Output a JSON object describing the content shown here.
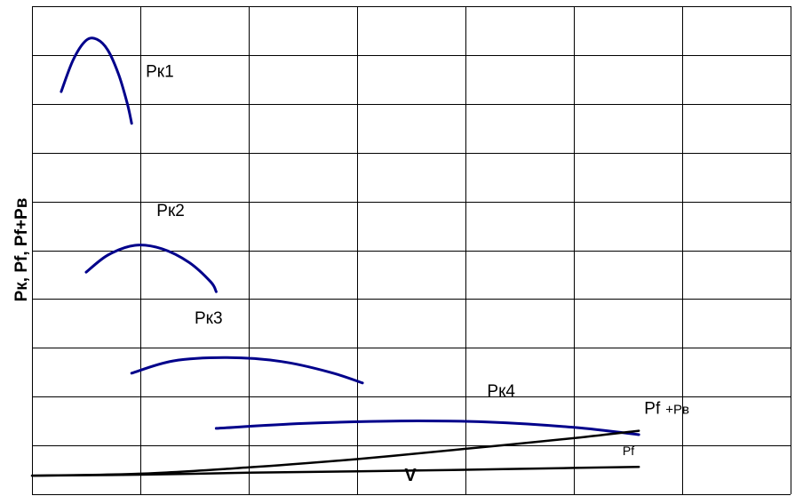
{
  "chart_data": {
    "type": "line",
    "title": "",
    "xlabel": "V",
    "ylabel": "Pк, Pf, Pf+Pв",
    "grid": true,
    "grid_cols": 7,
    "grid_rows": 10,
    "xlim": [
      0,
      7
    ],
    "ylim": [
      0,
      10
    ],
    "series": [
      {
        "name": "Pк1",
        "color": "#00008b",
        "points": [
          [
            0.27,
            8.25
          ],
          [
            0.38,
            8.9
          ],
          [
            0.5,
            9.3
          ],
          [
            0.6,
            9.32
          ],
          [
            0.7,
            9.1
          ],
          [
            0.8,
            8.6
          ],
          [
            0.88,
            8.0
          ],
          [
            0.92,
            7.6
          ]
        ]
      },
      {
        "name": "Pк2",
        "color": "#00008b",
        "points": [
          [
            0.5,
            4.55
          ],
          [
            0.7,
            4.9
          ],
          [
            0.95,
            5.1
          ],
          [
            1.2,
            5.03
          ],
          [
            1.45,
            4.75
          ],
          [
            1.65,
            4.35
          ],
          [
            1.7,
            4.15
          ]
        ]
      },
      {
        "name": "Pк3",
        "color": "#00008b",
        "points": [
          [
            0.92,
            2.48
          ],
          [
            1.3,
            2.73
          ],
          [
            1.8,
            2.8
          ],
          [
            2.3,
            2.72
          ],
          [
            2.75,
            2.5
          ],
          [
            3.05,
            2.28
          ]
        ]
      },
      {
        "name": "Pк4",
        "color": "#00008b",
        "points": [
          [
            1.7,
            1.35
          ],
          [
            2.5,
            1.45
          ],
          [
            3.4,
            1.5
          ],
          [
            4.2,
            1.48
          ],
          [
            5.0,
            1.37
          ],
          [
            5.6,
            1.22
          ]
        ]
      },
      {
        "name": "Pf+Pв",
        "color": "#000000",
        "points": [
          [
            0,
            0.38
          ],
          [
            1,
            0.42
          ],
          [
            2,
            0.55
          ],
          [
            3,
            0.72
          ],
          [
            4,
            0.93
          ],
          [
            5,
            1.15
          ],
          [
            5.6,
            1.3
          ]
        ]
      },
      {
        "name": "Pf",
        "color": "#000000",
        "points": [
          [
            0,
            0.38
          ],
          [
            1,
            0.4
          ],
          [
            2,
            0.44
          ],
          [
            3,
            0.47
          ],
          [
            4,
            0.5
          ],
          [
            5,
            0.54
          ],
          [
            5.6,
            0.56
          ]
        ]
      }
    ],
    "labels": [
      {
        "text": "Pк1",
        "x": 1.05,
        "y": 8.55
      },
      {
        "text": "Pк2",
        "x": 1.15,
        "y": 5.7
      },
      {
        "text": "Pк3",
        "x": 1.5,
        "y": 3.5
      },
      {
        "text": "Pк4",
        "x": 4.2,
        "y": 2.0
      },
      {
        "text": "Pf",
        "x": 5.65,
        "y": 1.65,
        "suffix": "+Pв"
      },
      {
        "text": "Pf",
        "x": 5.45,
        "y": 0.8
      }
    ]
  }
}
